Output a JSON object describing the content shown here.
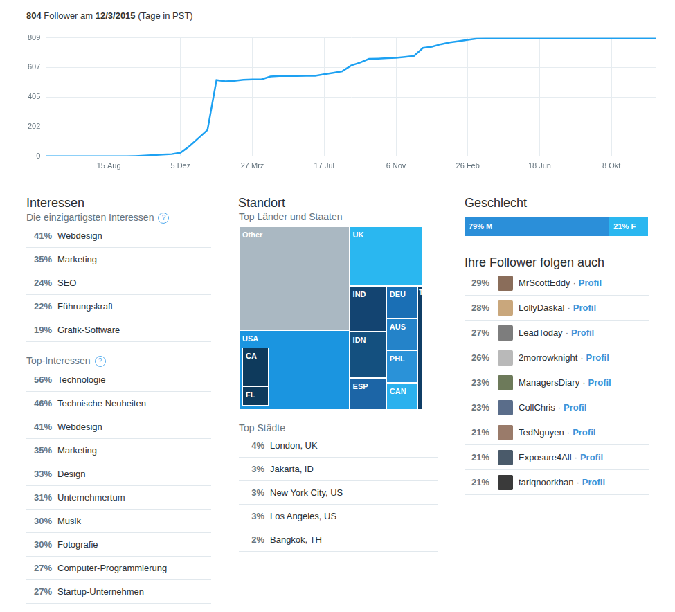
{
  "header": {
    "parts": [
      "804",
      "Follower am",
      "12/3/2015",
      "(Tage in PST)"
    ]
  },
  "chart_data": {
    "type": "line",
    "color": "#1da1f2",
    "categories": [
      null,
      null,
      null,
      null,
      null,
      null,
      null,
      "15 Aug",
      null,
      null,
      null,
      null,
      null,
      null,
      null,
      "5 Dez",
      null,
      null,
      null,
      null,
      null,
      null,
      null,
      "27 Mrz",
      null,
      null,
      null,
      null,
      null,
      null,
      null,
      "17 Jul",
      null,
      null,
      null,
      null,
      null,
      null,
      null,
      "6 Nov",
      null,
      null,
      null,
      null,
      null,
      null,
      null,
      "26 Feb",
      null,
      null,
      null,
      null,
      null,
      null,
      null,
      "18 Jun",
      null,
      null,
      null,
      null,
      null,
      null,
      null,
      "8 Okt",
      null,
      null,
      null,
      null,
      null
    ],
    "values": [
      0,
      0,
      0,
      0,
      0,
      0,
      0,
      0,
      0,
      0,
      2,
      5,
      8,
      12,
      15,
      25,
      70,
      125,
      180,
      520,
      512,
      515,
      522,
      525,
      525,
      545,
      548,
      548,
      548,
      550,
      550,
      560,
      570,
      580,
      620,
      640,
      665,
      667,
      670,
      672,
      678,
      685,
      740,
      748,
      765,
      778,
      786,
      795,
      804,
      805,
      805,
      805,
      805,
      805,
      805,
      805,
      805,
      805,
      805,
      805,
      805,
      805,
      805,
      805,
      805,
      805,
      805,
      805,
      805
    ],
    "ylim": [
      0,
      809
    ],
    "yticks": [
      0,
      202,
      405,
      607,
      809
    ],
    "grid": true
  },
  "interests": {
    "title": "Interessen",
    "help": "?",
    "unique": {
      "title": "Die einzigartigsten Interessen",
      "rows": [
        [
          "41%",
          "Webdesign"
        ],
        [
          "35%",
          "Marketing"
        ],
        [
          "24%",
          "SEO"
        ],
        [
          "22%",
          "Führungskraft"
        ],
        [
          "19%",
          "Grafik-Software"
        ]
      ]
    },
    "top": {
      "title": "Top-Interessen",
      "rows": [
        [
          "56%",
          "Technologie"
        ],
        [
          "46%",
          "Technische Neuheiten"
        ],
        [
          "41%",
          "Webdesign"
        ],
        [
          "35%",
          "Marketing"
        ],
        [
          "33%",
          "Design"
        ],
        [
          "31%",
          "Unternehmertum"
        ],
        [
          "30%",
          "Musik"
        ],
        [
          "30%",
          "Fotografie"
        ],
        [
          "27%",
          "Computer-Programmierung"
        ],
        [
          "27%",
          "Startup-Unternehmen"
        ]
      ]
    }
  },
  "location": {
    "title": "Standort",
    "subtitle": "Top Länder und Staaten",
    "treemap": [
      {
        "label": "Other",
        "share": 34,
        "color": "#aab8c2"
      },
      {
        "label": "UK",
        "share": 13,
        "color": "#2ab7f0"
      },
      {
        "label": "USA",
        "share": 26,
        "color": "#1b95e0",
        "children": [
          {
            "label": "CA",
            "share": 3,
            "color": "#0e3a5c"
          },
          {
            "label": "FL",
            "share": 1.5,
            "color": "#0e3a5c"
          }
        ]
      },
      {
        "label": "IND",
        "share": 5,
        "color": "#134471"
      },
      {
        "label": "IDN",
        "share": 5,
        "color": "#14507f"
      },
      {
        "label": "ESP",
        "share": 3.5,
        "color": "#1c65a6"
      },
      {
        "label": "DEU",
        "share": 3,
        "color": "#1a6fb5"
      },
      {
        "label": "AUS",
        "share": 3,
        "color": "#2483c9"
      },
      {
        "label": "PHL",
        "share": 3,
        "color": "#2a92d8"
      },
      {
        "label": "CAN",
        "share": 2.5,
        "color": "#2bb1ee"
      },
      {
        "label": "T",
        "share": 2,
        "color": "#0f3d66"
      }
    ],
    "cities": {
      "title": "Top Städte",
      "rows": [
        [
          "4%",
          "London, UK"
        ],
        [
          "3%",
          "Jakarta, ID"
        ],
        [
          "3%",
          "New York City, US"
        ],
        [
          "3%",
          "Los Angeles, US"
        ],
        [
          "2%",
          "Bangkok, TH"
        ]
      ]
    }
  },
  "gender": {
    "title": "Geschlecht",
    "segments": [
      {
        "value": 79,
        "label": "79% M",
        "color": "#2b8fd9"
      },
      {
        "value": 21,
        "label": "21% F",
        "color": "#2ab7f0"
      }
    ]
  },
  "also_follow": {
    "title": "Ihre Follower folgen auch",
    "separator": "·",
    "link": "Profil",
    "rows": [
      [
        "29%",
        "MrScottEddy"
      ],
      [
        "28%",
        "LollyDaskal"
      ],
      [
        "27%",
        "LeadToday"
      ],
      [
        "26%",
        "2morrowknight"
      ],
      [
        "23%",
        "ManagersDiary"
      ],
      [
        "23%",
        "CollChris"
      ],
      [
        "21%",
        "TedNguyen"
      ],
      [
        "21%",
        "Exposure4All"
      ],
      [
        "21%",
        "tariqnoorkhan"
      ]
    ]
  }
}
